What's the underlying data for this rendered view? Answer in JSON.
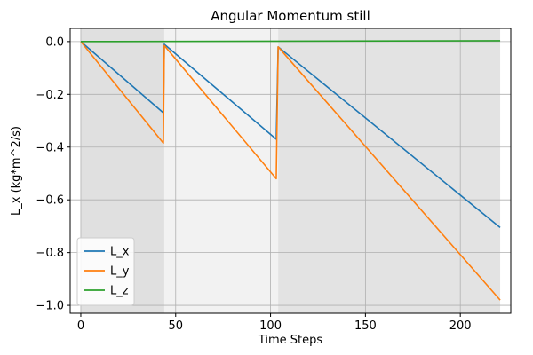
{
  "chart_data": {
    "type": "line",
    "title": "Angular Momentum still",
    "xlabel": "Time Steps",
    "ylabel": "L_x (kg*m^2/s)",
    "xlim": [
      -5.6,
      226.6
    ],
    "ylim": [
      -1.03,
      0.05
    ],
    "xticks": [
      0,
      50,
      100,
      150,
      200
    ],
    "xtick_labels": [
      "0",
      "50",
      "100",
      "150",
      "200"
    ],
    "yticks": [
      0.0,
      -0.2,
      -0.4,
      -0.6,
      -0.8,
      -1.0
    ],
    "ytick_labels": [
      "0.0",
      "−0.2",
      "−0.4",
      "−0.6",
      "−0.8",
      "−1.0"
    ],
    "grid": true,
    "legend_position": "lower-left",
    "shaded_regions": [
      {
        "x0": 0,
        "x1": 44,
        "color": "#e0e0e0"
      },
      {
        "x0": 44,
        "x1": 104,
        "color": "#f2f2f2"
      },
      {
        "x0": 104,
        "x1": 221,
        "color": "#e3e3e3"
      }
    ],
    "series": [
      {
        "name": "L_x",
        "color": "#1f77b4",
        "points": [
          [
            0,
            0.0
          ],
          [
            43.5,
            -0.27
          ],
          [
            44,
            -0.01
          ],
          [
            103,
            -0.37
          ],
          [
            104,
            -0.02
          ],
          [
            221,
            -0.705
          ]
        ]
      },
      {
        "name": "L_y",
        "color": "#ff7f0e",
        "points": [
          [
            0,
            0.0
          ],
          [
            43.5,
            -0.385
          ],
          [
            44,
            -0.015
          ],
          [
            103,
            -0.52
          ],
          [
            104,
            -0.02
          ],
          [
            221,
            -0.98
          ]
        ]
      },
      {
        "name": "L_z",
        "color": "#2ca02c",
        "points": [
          [
            0,
            0.0
          ],
          [
            221,
            0.003
          ]
        ]
      }
    ]
  }
}
